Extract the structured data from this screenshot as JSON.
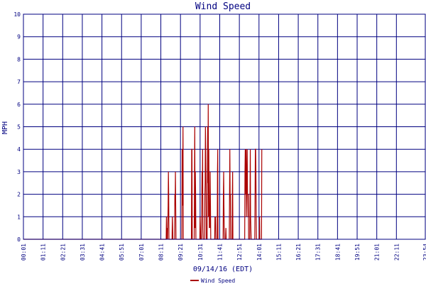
{
  "chart_data": {
    "type": "line",
    "title": "Wind Speed",
    "xlabel": "09/14/16 (EDT)",
    "ylabel": "MPH",
    "ylim": [
      0,
      10
    ],
    "y_ticks": [
      "0",
      "1",
      "2",
      "3",
      "4",
      "5",
      "6",
      "7",
      "8",
      "9",
      "10"
    ],
    "x_tick_labels": [
      "00:01",
      "01:11",
      "02:21",
      "03:31",
      "04:41",
      "05:51",
      "07:01",
      "08:11",
      "09:21",
      "10:31",
      "11:41",
      "12:51",
      "14:01",
      "15:11",
      "16:21",
      "17:31",
      "18:41",
      "19:51",
      "21:01",
      "22:11",
      "23:54"
    ],
    "x_tick_minutes": [
      1,
      71,
      141,
      211,
      281,
      351,
      421,
      491,
      561,
      631,
      701,
      771,
      841,
      911,
      981,
      1051,
      1121,
      1191,
      1261,
      1331,
      1434
    ],
    "xlim_minutes": [
      1,
      1434
    ],
    "grid": true,
    "legend_position": "bottom-center",
    "colors": {
      "series": "#aa0000",
      "grid": "#000080",
      "text": "#000080",
      "background": "#ffffff"
    },
    "series": [
      {
        "name": "Wind Speed",
        "points": [
          [
            1,
            0
          ],
          [
            510,
            0
          ],
          [
            511,
            1
          ],
          [
            512,
            0
          ],
          [
            514,
            0.5
          ],
          [
            515,
            0
          ],
          [
            517,
            1.5
          ],
          [
            518,
            3
          ],
          [
            519,
            2
          ],
          [
            520,
            0
          ],
          [
            531,
            0
          ],
          [
            532,
            1
          ],
          [
            533,
            0.5
          ],
          [
            534,
            0
          ],
          [
            540,
            0
          ],
          [
            541,
            2
          ],
          [
            542,
            1.5
          ],
          [
            543,
            3
          ],
          [
            544,
            1.5
          ],
          [
            545,
            0
          ],
          [
            566,
            0
          ],
          [
            567,
            4
          ],
          [
            568,
            1.5
          ],
          [
            569,
            2.5
          ],
          [
            570,
            5
          ],
          [
            571,
            0
          ],
          [
            600,
            0
          ],
          [
            601,
            4
          ],
          [
            602,
            4
          ],
          [
            603,
            0
          ],
          [
            610,
            0
          ],
          [
            611,
            3
          ],
          [
            612,
            5
          ],
          [
            613,
            0.5
          ],
          [
            614,
            3
          ],
          [
            615,
            2
          ],
          [
            616,
            0
          ],
          [
            630,
            0
          ],
          [
            631,
            1
          ],
          [
            632,
            0.5
          ],
          [
            633,
            0
          ],
          [
            636,
            0
          ],
          [
            637,
            1.5
          ],
          [
            638,
            3
          ],
          [
            639,
            2
          ],
          [
            640,
            4
          ],
          [
            641,
            0.5
          ],
          [
            642,
            0
          ],
          [
            647,
            0
          ],
          [
            648,
            2
          ],
          [
            649,
            2.5
          ],
          [
            650,
            5
          ],
          [
            651,
            4
          ],
          [
            652,
            2.5
          ],
          [
            653,
            0
          ],
          [
            656,
            0
          ],
          [
            657,
            2.5
          ],
          [
            658,
            5
          ],
          [
            659,
            2.5
          ],
          [
            660,
            6
          ],
          [
            661,
            1
          ],
          [
            662,
            4
          ],
          [
            663,
            2
          ],
          [
            664,
            0.5
          ],
          [
            665,
            1
          ],
          [
            666,
            0.5
          ],
          [
            667,
            3
          ],
          [
            668,
            1.5
          ],
          [
            669,
            0
          ],
          [
            683,
            0
          ],
          [
            684,
            1
          ],
          [
            685,
            0.5
          ],
          [
            686,
            1
          ],
          [
            687,
            0
          ],
          [
            692,
            0
          ],
          [
            693,
            3
          ],
          [
            694,
            4
          ],
          [
            695,
            0
          ],
          [
            713,
            0
          ],
          [
            714,
            2
          ],
          [
            715,
            3
          ],
          [
            716,
            1.5
          ],
          [
            717,
            0.5
          ],
          [
            718,
            0
          ],
          [
            722,
            0
          ],
          [
            723,
            0.5
          ],
          [
            724,
            0
          ],
          [
            735,
            0
          ],
          [
            736,
            2
          ],
          [
            737,
            4
          ],
          [
            738,
            2
          ],
          [
            739,
            2
          ],
          [
            740,
            0
          ],
          [
            745,
            0
          ],
          [
            746,
            2
          ],
          [
            747,
            3
          ],
          [
            748,
            0
          ],
          [
            790,
            0
          ],
          [
            791,
            3
          ],
          [
            792,
            4
          ],
          [
            793,
            3
          ],
          [
            794,
            2
          ],
          [
            795,
            4
          ],
          [
            796,
            1
          ],
          [
            797,
            2
          ],
          [
            798,
            3
          ],
          [
            799,
            4
          ],
          [
            800,
            2
          ],
          [
            801,
            2
          ],
          [
            802,
            1
          ],
          [
            803,
            2
          ],
          [
            804,
            0
          ],
          [
            808,
            0
          ],
          [
            809,
            2
          ],
          [
            810,
            4
          ],
          [
            811,
            1
          ],
          [
            812,
            0.5
          ],
          [
            813,
            0
          ],
          [
            826,
            0
          ],
          [
            827,
            2
          ],
          [
            828,
            4
          ],
          [
            829,
            4
          ],
          [
            830,
            3
          ],
          [
            831,
            1
          ],
          [
            832,
            0
          ],
          [
            842,
            0
          ],
          [
            843,
            1
          ],
          [
            844,
            0
          ],
          [
            850,
            0
          ],
          [
            851,
            4
          ]
        ]
      }
    ]
  }
}
